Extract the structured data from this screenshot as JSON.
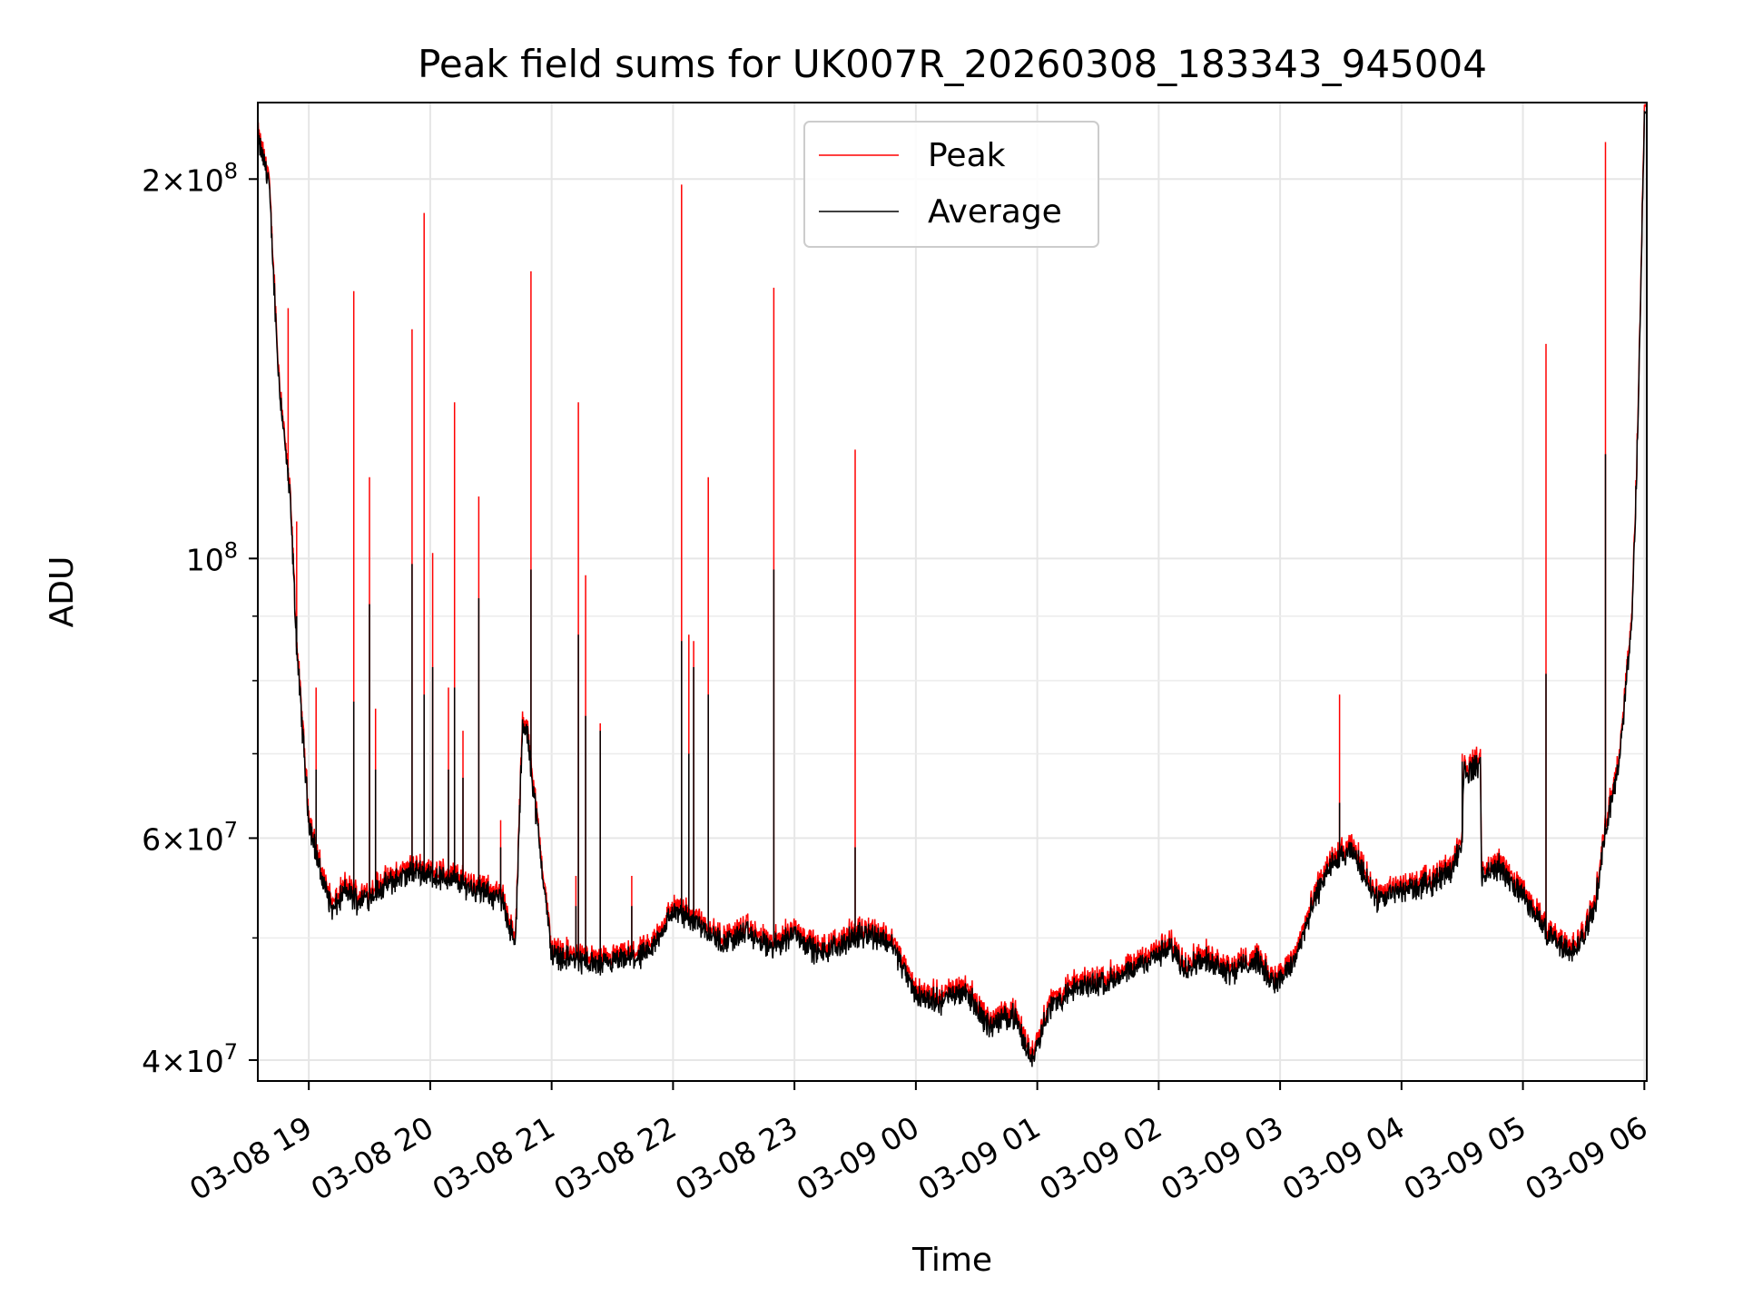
{
  "chart_data": {
    "type": "line",
    "title": "Peak field sums for UK007R_20260308_183343_945004",
    "xlabel": "Time",
    "ylabel": "ADU",
    "yscale": "log",
    "grid": true,
    "xlim_hours": [
      -0.42,
      11.02
    ],
    "ylim": [
      38500000,
      230000000
    ],
    "x_ticks": [
      {
        "h": 0,
        "label": "03-08 19"
      },
      {
        "h": 1,
        "label": "03-08 20"
      },
      {
        "h": 2,
        "label": "03-08 21"
      },
      {
        "h": 3,
        "label": "03-08 22"
      },
      {
        "h": 4,
        "label": "03-08 23"
      },
      {
        "h": 5,
        "label": "03-09 00"
      },
      {
        "h": 6,
        "label": "03-09 01"
      },
      {
        "h": 7,
        "label": "03-09 02"
      },
      {
        "h": 8,
        "label": "03-09 03"
      },
      {
        "h": 9,
        "label": "03-09 04"
      },
      {
        "h": 10,
        "label": "03-09 05"
      },
      {
        "h": 11,
        "label": "03-09 06"
      }
    ],
    "y_major_ticks": [
      {
        "v": 40000000,
        "mant": "4",
        "exp": "7"
      },
      {
        "v": 60000000,
        "mant": "6",
        "exp": "7"
      },
      {
        "v": 100000000,
        "mant": "",
        "exp": "8"
      },
      {
        "v": 200000000,
        "mant": "2",
        "exp": "8"
      }
    ],
    "y_minor_ticks": [
      50000000,
      70000000,
      80000000,
      90000000
    ],
    "legend": {
      "position": "top-center",
      "entries": [
        "Peak",
        "Average"
      ]
    },
    "series": [
      {
        "name": "Peak",
        "color": "#ff0000"
      },
      {
        "name": "Average",
        "color": "#000000"
      }
    ],
    "baseline_hours": [
      -0.42,
      -0.33,
      -0.25,
      -0.15,
      -0.1,
      0.0,
      0.1,
      0.2,
      0.3,
      0.4,
      0.5,
      0.7,
      0.9,
      1.0,
      1.2,
      1.4,
      1.6,
      1.7,
      1.76,
      1.8,
      2.0,
      2.2,
      2.4,
      2.6,
      2.8,
      3.0,
      3.2,
      3.4,
      3.6,
      3.8,
      4.0,
      4.2,
      4.4,
      4.6,
      4.8,
      5.0,
      5.2,
      5.4,
      5.6,
      5.8,
      5.95,
      6.1,
      6.3,
      6.5,
      6.7,
      6.9,
      7.1,
      7.2,
      7.4,
      7.6,
      7.8,
      7.95,
      8.1,
      8.3,
      8.4,
      8.6,
      8.8,
      9.0,
      9.2,
      9.4,
      9.5,
      9.51,
      9.65,
      9.66,
      9.8,
      10.0,
      10.2,
      10.4,
      10.5,
      10.6,
      10.65,
      10.7,
      10.8,
      10.9,
      10.95,
      11.0
    ],
    "baseline_average": [
      215000000,
      200000000,
      140000000,
      110000000,
      85000000,
      62000000,
      56000000,
      52500000,
      54500000,
      53500000,
      54000000,
      55500000,
      56500000,
      56000000,
      55500000,
      54500000,
      53500000,
      49000000,
      73500000,
      72500000,
      48500000,
      48000000,
      47500000,
      48000000,
      48500000,
      52500000,
      51500000,
      49500000,
      50500000,
      49000000,
      50500000,
      48500000,
      49500000,
      50500000,
      49500000,
      45000000,
      44500000,
      45500000,
      42500000,
      43500000,
      40000000,
      44000000,
      45500000,
      46000000,
      46500000,
      48000000,
      49000000,
      47500000,
      48000000,
      47000000,
      48000000,
      46000000,
      47500000,
      54000000,
      57000000,
      58500000,
      53500000,
      54500000,
      55000000,
      56500000,
      59500000,
      67500000,
      68500000,
      56000000,
      57000000,
      54000000,
      50500000,
      48500000,
      50000000,
      53500000,
      58000000,
      62000000,
      70000000,
      90000000,
      130000000,
      226000000
    ],
    "spikes": [
      {
        "h": -0.17,
        "peak": 158000000,
        "avg": 118000000
      },
      {
        "h": -0.1,
        "peak": 107000000,
        "avg": 90000000
      },
      {
        "h": 0.06,
        "peak": 79000000,
        "avg": 68000000
      },
      {
        "h": 0.37,
        "peak": 163000000,
        "avg": 77000000
      },
      {
        "h": 0.5,
        "peak": 116000000,
        "avg": 92000000
      },
      {
        "h": 0.55,
        "peak": 76000000,
        "avg": 68000000
      },
      {
        "h": 0.85,
        "peak": 152000000,
        "avg": 99000000
      },
      {
        "h": 0.95,
        "peak": 188000000,
        "avg": 78000000
      },
      {
        "h": 1.02,
        "peak": 101000000,
        "avg": 82000000
      },
      {
        "h": 1.15,
        "peak": 79000000,
        "avg": 68000000
      },
      {
        "h": 1.2,
        "peak": 133000000,
        "avg": 79000000
      },
      {
        "h": 1.27,
        "peak": 73000000,
        "avg": 67000000
      },
      {
        "h": 1.4,
        "peak": 112000000,
        "avg": 93000000
      },
      {
        "h": 1.58,
        "peak": 62000000,
        "avg": 59000000
      },
      {
        "h": 1.83,
        "peak": 169000000,
        "avg": 98000000
      },
      {
        "h": 2.2,
        "peak": 56000000,
        "avg": 53000000
      },
      {
        "h": 2.22,
        "peak": 133000000,
        "avg": 87000000
      },
      {
        "h": 2.28,
        "peak": 97000000,
        "avg": 75000000
      },
      {
        "h": 2.4,
        "peak": 74000000,
        "avg": 73000000
      },
      {
        "h": 2.66,
        "peak": 56000000,
        "avg": 53000000
      },
      {
        "h": 3.07,
        "peak": 198000000,
        "avg": 86000000
      },
      {
        "h": 3.13,
        "peak": 87000000,
        "avg": 70000000
      },
      {
        "h": 3.17,
        "peak": 86000000,
        "avg": 82000000
      },
      {
        "h": 3.29,
        "peak": 116000000,
        "avg": 78000000
      },
      {
        "h": 3.83,
        "peak": 164000000,
        "avg": 98000000
      },
      {
        "h": 4.5,
        "peak": 122000000,
        "avg": 59000000
      },
      {
        "h": 8.49,
        "peak": 78000000,
        "avg": 64000000
      },
      {
        "h": 9.5,
        "peak": 70000000,
        "avg": 69000000
      },
      {
        "h": 10.19,
        "peak": 148000000,
        "avg": 81000000
      },
      {
        "h": 10.68,
        "peak": 214000000,
        "avg": 121000000
      }
    ]
  }
}
